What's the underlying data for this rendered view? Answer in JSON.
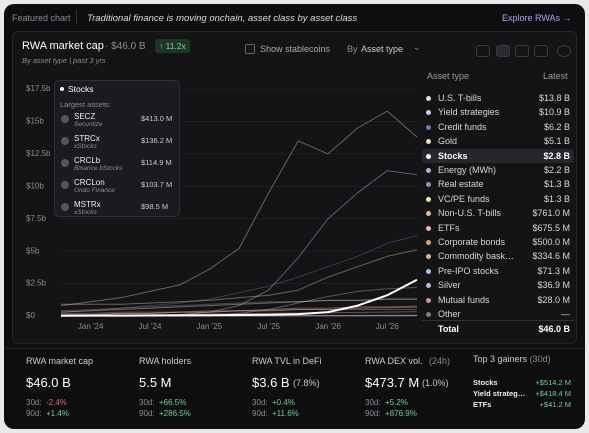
{
  "header": {
    "tag": "Featured chart",
    "headline": "Traditional finance is moving onchain, asset class by asset class",
    "link": "Explore RWAs →"
  },
  "panel": {
    "title": "RWA market cap",
    "total": "· $46.0 B",
    "growth": "↑ 11.2x",
    "subtitle": "By asset type | past 3 yrs",
    "toggle": "Show stablecoins",
    "group_prefix": "By",
    "group": "Asset type"
  },
  "chart_data": {
    "type": "line",
    "categories": [
      null,
      "Jan '24",
      null,
      "Jul '24",
      null,
      "Jan '25",
      null,
      "Jul '25",
      null,
      "Jan '26",
      null,
      "Jul '26",
      null
    ],
    "ylim": [
      0,
      17.5
    ],
    "yticks": [
      {
        "value": 0,
        "label": "$0"
      },
      {
        "value": 2.5,
        "label": "$2.5b"
      },
      {
        "value": 5,
        "label": "$5b"
      },
      {
        "value": 7.5,
        "label": "$7.5b"
      },
      {
        "value": 10,
        "label": "$10b"
      },
      {
        "value": 12.5,
        "label": "$12.5b"
      },
      {
        "value": 15,
        "label": "$15b"
      },
      {
        "value": 17.5,
        "label": "$17.5b"
      }
    ],
    "grid": true,
    "series": [
      {
        "name": "U.S. T-bills",
        "latest": "$13.8 B",
        "color": "#cfe8d8",
        "values": [
          0.8,
          1.1,
          1.4,
          1.9,
          2.4,
          3.6,
          5.2,
          9.5,
          13.5,
          12.5,
          14.5,
          15.8,
          13.8
        ]
      },
      {
        "name": "Yield strategies",
        "latest": "$10.9 B",
        "color": "#d8c8f0",
        "values": [
          0,
          0,
          0,
          0,
          0.1,
          0.3,
          0.8,
          2.0,
          4.5,
          7.5,
          9.5,
          11.2,
          10.9
        ]
      },
      {
        "name": "Credit funds",
        "latest": "$6.2 B",
        "color": "#6f7aa0",
        "values": [
          0.3,
          0.4,
          0.6,
          0.8,
          1.0,
          1.3,
          1.8,
          2.3,
          3.0,
          3.8,
          4.6,
          5.6,
          6.2
        ]
      },
      {
        "name": "Gold",
        "latest": "$5.1 B",
        "color": "#f0e2a0",
        "values": [
          0.9,
          0.9,
          0.9,
          1.0,
          1.1,
          1.2,
          1.4,
          1.6,
          2.0,
          3.0,
          3.8,
          4.6,
          5.1
        ]
      },
      {
        "name": "Stocks",
        "latest": "$2.8 B",
        "color": "#ffffff",
        "values": [
          0.02,
          0.03,
          0.03,
          0.04,
          0.05,
          0.06,
          0.08,
          0.1,
          0.15,
          0.3,
          0.8,
          1.6,
          2.8
        ]
      },
      {
        "name": "Energy (MWh)",
        "latest": "$2.2 B",
        "color": "#b8b0e8",
        "values": [
          0,
          0,
          0,
          0,
          0,
          0,
          0.2,
          0.5,
          1.0,
          1.5,
          1.9,
          2.1,
          2.2
        ]
      },
      {
        "name": "Real estate",
        "latest": "$1.3 B",
        "color": "#8a94b8",
        "values": [
          0.4,
          0.5,
          0.6,
          0.7,
          0.8,
          0.9,
          1.0,
          1.1,
          1.1,
          1.2,
          1.2,
          1.3,
          1.3
        ]
      },
      {
        "name": "VC/PE funds",
        "latest": "$1.3 B",
        "color": "#f4e8b0",
        "values": [
          0.3,
          0.4,
          0.5,
          0.6,
          0.7,
          0.8,
          0.9,
          1.0,
          1.1,
          1.2,
          1.2,
          1.3,
          1.3
        ]
      },
      {
        "name": "Non-U.S. T-bills",
        "latest": "$761.0 M",
        "color": "#f0c090",
        "values": [
          0.1,
          0.1,
          0.2,
          0.2,
          0.3,
          0.3,
          0.4,
          0.5,
          0.6,
          0.6,
          0.7,
          0.7,
          0.761
        ]
      },
      {
        "name": "ETFs",
        "latest": "$675.5 M",
        "color": "#e8b8c0",
        "values": [
          0.1,
          0.1,
          0.2,
          0.2,
          0.3,
          0.3,
          0.4,
          0.4,
          0.5,
          0.5,
          0.6,
          0.65,
          0.6755
        ]
      },
      {
        "name": "Corporate bonds",
        "latest": "$500.0 M",
        "color": "#e0a070",
        "values": [
          0.2,
          0.2,
          0.3,
          0.3,
          0.3,
          0.4,
          0.4,
          0.4,
          0.5,
          0.5,
          0.5,
          0.5,
          0.5
        ]
      },
      {
        "name": "Commodity bask…",
        "latest": "$334.6 M",
        "color": "#d8b890",
        "values": [
          0.05,
          0.06,
          0.08,
          0.1,
          0.12,
          0.15,
          0.18,
          0.2,
          0.22,
          0.25,
          0.28,
          0.31,
          0.3346
        ]
      },
      {
        "name": "Pre-IPO stocks",
        "latest": "$71.3 M",
        "color": "#a8c8f0",
        "values": [
          0,
          0,
          0,
          0,
          0,
          0,
          0.01,
          0.02,
          0.03,
          0.04,
          0.05,
          0.06,
          0.0713
        ]
      },
      {
        "name": "Silver",
        "latest": "$36.9 M",
        "color": "#c0b8e0",
        "values": [
          0,
          0,
          0,
          0,
          0,
          0,
          0,
          0.01,
          0.015,
          0.02,
          0.025,
          0.03,
          0.0369
        ]
      },
      {
        "name": "Mutual funds",
        "latest": "$28.0 M",
        "color": "#c89898",
        "values": [
          0.01,
          0.01,
          0.01,
          0.015,
          0.015,
          0.02,
          0.02,
          0.02,
          0.025,
          0.025,
          0.025,
          0.028,
          0.028
        ]
      },
      {
        "name": "Other",
        "latest": "—",
        "color": "#808080",
        "values": [
          0,
          0,
          0,
          0,
          0,
          0,
          0,
          0,
          0,
          0,
          0,
          0,
          0
        ]
      }
    ],
    "tooltip": {
      "series": 4,
      "subtitle": "Largest assets:",
      "assets": [
        {
          "ticker": "SECZ",
          "issuer": "Securitize",
          "value": "$413.0 M"
        },
        {
          "ticker": "STRCx",
          "issuer": "xStocks",
          "value": "$136.2 M"
        },
        {
          "ticker": "CRCLb",
          "issuer": "Binance bStocks",
          "value": "$114.9 M"
        },
        {
          "ticker": "CRCLon",
          "issuer": "Ondo Finance",
          "value": "$103.7 M"
        },
        {
          "ticker": "MSTRx",
          "issuer": "xStocks",
          "value": "$98.5 M"
        }
      ]
    }
  },
  "legend": {
    "headers": [
      "Asset type",
      "Latest"
    ],
    "total_name": "Total",
    "total_value": "$46.0 B"
  },
  "stats": [
    {
      "label": "RWA market cap",
      "value": "$46.0 B",
      "d30_label": "30d:",
      "d30": "-2.4%",
      "d90_label": "90d:",
      "d90": "+1.4%"
    },
    {
      "label": "RWA holders",
      "value": "5.5 M",
      "d30_label": "30d:",
      "d30": "+66.5%",
      "d90_label": "90d:",
      "d90": "+286.5%"
    },
    {
      "label": "RWA TVL in DeFi",
      "value": "$3.6 B",
      "share": "(7.8%)",
      "d30_label": "30d:",
      "d30": "+0.4%",
      "d90_label": "90d:",
      "d90": "+11.6%"
    },
    {
      "label": "RWA DEX vol.",
      "note": "(24h)",
      "value": "$473.7 M",
      "share": "(1.0%)",
      "d30_label": "30d:",
      "d30": "+5.2%",
      "d90_label": "90d:",
      "d90": "+876.9%"
    }
  ],
  "gainers": {
    "title": "Top 3 gainers",
    "period": "(30d)",
    "rows": [
      [
        "Stocks",
        "+$514.2 M"
      ],
      [
        "Yield strateg…",
        "+$418.4 M"
      ],
      [
        "ETFs",
        "+$41.2 M"
      ]
    ]
  }
}
